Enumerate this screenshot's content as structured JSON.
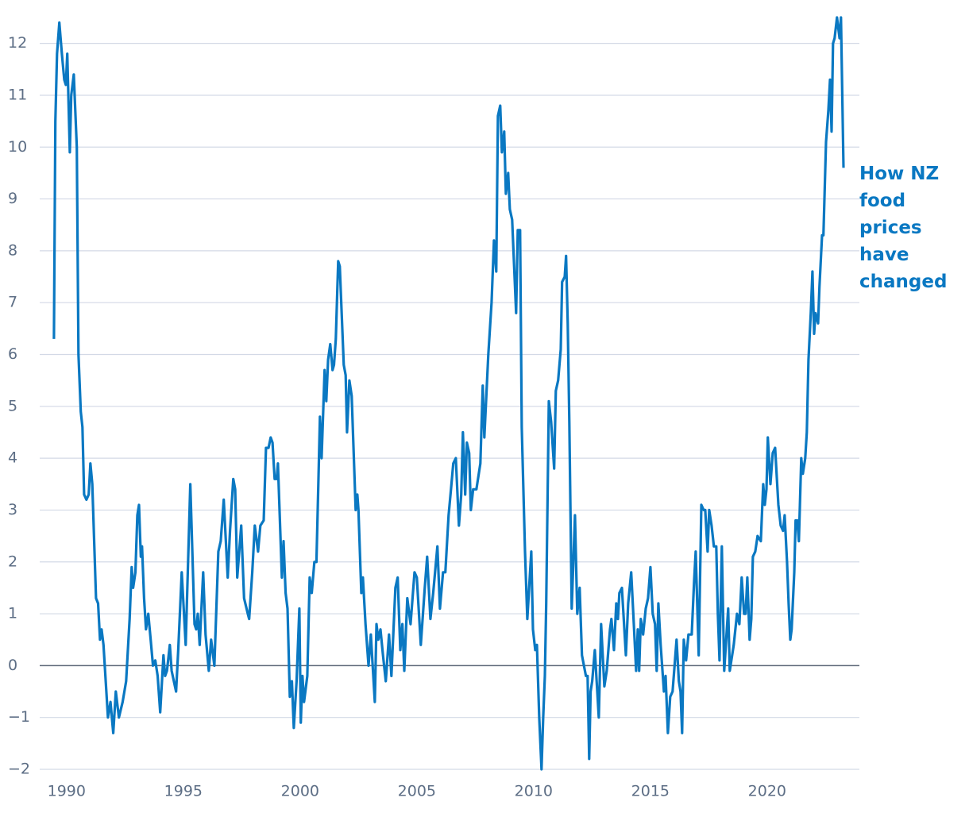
{
  "chart_data": {
    "type": "line",
    "annotation": "How NZ food prices have changed",
    "color": "#0a78c2",
    "xlim": [
      1988.85,
      2023.95
    ],
    "xticks": [
      1990,
      1995,
      2000,
      2005,
      2010,
      2015,
      2020
    ],
    "ylim": [
      -2,
      12.5
    ],
    "yticks": [
      {
        "value": -2,
        "label": "−2"
      },
      {
        "value": -1,
        "label": "−1"
      },
      0,
      1,
      2,
      3,
      4,
      5,
      6,
      7,
      8,
      9,
      10,
      11,
      12
    ],
    "grid": true,
    "x": [
      1989.46,
      1989.52,
      1989.59,
      1989.69,
      1989.8,
      1989.9,
      1989.97,
      1990.03,
      1990.14,
      1990.2,
      1990.31,
      1990.44,
      1990.51,
      1990.61,
      1990.68,
      1990.75,
      1990.85,
      1990.95,
      1991.02,
      1991.1,
      1991.26,
      1991.35,
      1991.43,
      1991.5,
      1991.58,
      1991.77,
      1991.88,
      1992.0,
      1992.11,
      1992.24,
      1992.4,
      1992.55,
      1992.7,
      1992.79,
      1992.85,
      1992.95,
      1993.03,
      1993.1,
      1993.18,
      1993.23,
      1993.32,
      1993.4,
      1993.5,
      1993.6,
      1993.7,
      1993.8,
      1993.9,
      1994.01,
      1994.15,
      1994.22,
      1994.3,
      1994.42,
      1994.5,
      1994.69,
      1994.78,
      1994.93,
      1995.1,
      1995.3,
      1995.48,
      1995.55,
      1995.62,
      1995.7,
      1995.85,
      1995.95,
      1996.09,
      1996.19,
      1996.33,
      1996.5,
      1996.6,
      1996.73,
      1996.9,
      1997.0,
      1997.14,
      1997.22,
      1997.31,
      1997.48,
      1997.6,
      1997.76,
      1997.82,
      1997.95,
      1998.06,
      1998.2,
      1998.3,
      1998.44,
      1998.54,
      1998.65,
      1998.74,
      1998.82,
      1998.91,
      1999.0,
      1999.05,
      1999.22,
      1999.29,
      1999.38,
      1999.46,
      1999.56,
      1999.65,
      1999.73,
      1999.85,
      1999.97,
      2000.03,
      2000.1,
      2000.17,
      2000.31,
      2000.41,
      2000.5,
      2000.61,
      2000.7,
      2000.78,
      2000.85,
      2000.92,
      2001.05,
      2001.12,
      2001.2,
      2001.29,
      2001.39,
      2001.45,
      2001.53,
      2001.63,
      2001.7,
      2001.87,
      2001.95,
      2002.01,
      2002.11,
      2002.21,
      2002.38,
      2002.45,
      2002.5,
      2002.62,
      2002.69,
      2002.8,
      2002.93,
      2003.03,
      2003.2,
      2003.27,
      2003.35,
      2003.44,
      2003.55,
      2003.67,
      2003.81,
      2003.91,
      2004.08,
      2004.18,
      2004.29,
      2004.38,
      2004.46,
      2004.59,
      2004.73,
      2004.9,
      2005.0,
      2005.17,
      2005.34,
      2005.44,
      2005.58,
      2005.7,
      2005.88,
      2005.99,
      2006.12,
      2006.22,
      2006.36,
      2006.46,
      2006.56,
      2006.67,
      2006.8,
      2006.9,
      2006.97,
      2007.07,
      2007.14,
      2007.24,
      2007.31,
      2007.41,
      2007.55,
      2007.72,
      2007.82,
      2007.89,
      2008.06,
      2008.2,
      2008.3,
      2008.4,
      2008.47,
      2008.57,
      2008.64,
      2008.74,
      2008.81,
      2008.91,
      2008.98,
      2009.08,
      2009.25,
      2009.32,
      2009.42,
      2009.49,
      2009.63,
      2009.73,
      2009.9,
      2009.97,
      2010.07,
      2010.14,
      2010.24,
      2010.34,
      2010.41,
      2010.48,
      2010.54,
      2010.65,
      2010.75,
      2010.88,
      2010.95,
      2011.05,
      2011.16,
      2011.22,
      2011.33,
      2011.39,
      2011.46,
      2011.53,
      2011.63,
      2011.77,
      2011.87,
      2011.97,
      2012.07,
      2012.24,
      2012.31,
      2012.38,
      2012.44,
      2012.51,
      2012.62,
      2012.79,
      2012.89,
      2013.03,
      2013.13,
      2013.27,
      2013.33,
      2013.44,
      2013.54,
      2013.61,
      2013.67,
      2013.78,
      2013.95,
      2014.05,
      2014.18,
      2014.29,
      2014.39,
      2014.46,
      2014.52,
      2014.59,
      2014.69,
      2014.8,
      2014.9,
      2015.0,
      2015.1,
      2015.2,
      2015.27,
      2015.34,
      2015.44,
      2015.58,
      2015.65,
      2015.75,
      2015.85,
      2015.95,
      2016.12,
      2016.22,
      2016.29,
      2016.36,
      2016.43,
      2016.53,
      2016.63,
      2016.77,
      2016.87,
      2016.94,
      2017.07,
      2017.18,
      2017.28,
      2017.35,
      2017.45,
      2017.52,
      2017.62,
      2017.72,
      2017.82,
      2017.89,
      2017.96,
      2018.06,
      2018.16,
      2018.26,
      2018.33,
      2018.4,
      2018.57,
      2018.71,
      2018.81,
      2018.91,
      2019.01,
      2019.08,
      2019.15,
      2019.25,
      2019.32,
      2019.39,
      2019.49,
      2019.59,
      2019.73,
      2019.83,
      2019.9,
      2019.97,
      2020.03,
      2020.14,
      2020.24,
      2020.34,
      2020.48,
      2020.58,
      2020.68,
      2020.75,
      2020.85,
      2020.92,
      2020.99,
      2021.05,
      2021.16,
      2021.22,
      2021.29,
      2021.36,
      2021.46,
      2021.53,
      2021.63,
      2021.7,
      2021.77,
      2021.87,
      2021.94,
      2022.01,
      2022.07,
      2022.18,
      2022.24,
      2022.35,
      2022.41,
      2022.52,
      2022.62,
      2022.69,
      2022.76,
      2022.82,
      2022.89,
      2022.99,
      2023.1,
      2023.16,
      2023.27
    ],
    "values": [
      6.3,
      10.5,
      11.8,
      12.4,
      11.8,
      11.3,
      11.2,
      11.8,
      9.9,
      11.0,
      11.4,
      10.0,
      6.0,
      4.9,
      4.6,
      3.3,
      3.2,
      3.3,
      3.9,
      3.5,
      1.3,
      1.2,
      0.5,
      0.7,
      0.4,
      -1.0,
      -0.7,
      -1.3,
      -0.5,
      -1.0,
      -0.7,
      -0.3,
      0.9,
      1.9,
      1.5,
      1.8,
      2.9,
      3.1,
      2.1,
      2.3,
      1.3,
      0.7,
      1.0,
      0.5,
      0.0,
      0.1,
      -0.2,
      -0.9,
      0.2,
      -0.2,
      -0.1,
      0.4,
      -0.1,
      -0.5,
      0.3,
      1.8,
      0.4,
      3.5,
      0.8,
      0.7,
      1.0,
      0.4,
      1.8,
      0.6,
      -0.1,
      0.5,
      0.0,
      2.2,
      2.4,
      3.2,
      1.7,
      2.6,
      3.6,
      3.4,
      1.7,
      2.7,
      1.3,
      1.0,
      0.9,
      1.8,
      2.7,
      2.2,
      2.7,
      2.8,
      4.2,
      4.2,
      4.4,
      4.3,
      3.6,
      3.6,
      3.9,
      1.7,
      2.4,
      1.4,
      1.1,
      -0.6,
      -0.3,
      -1.2,
      -0.3,
      1.1,
      -1.1,
      -0.2,
      -0.7,
      -0.2,
      1.7,
      1.4,
      2.0,
      2.0,
      3.5,
      4.8,
      4.0,
      5.7,
      5.1,
      5.9,
      6.2,
      5.7,
      5.8,
      6.3,
      7.8,
      7.7,
      5.8,
      5.6,
      4.5,
      5.5,
      5.2,
      3.0,
      3.3,
      3.0,
      1.4,
      1.7,
      0.8,
      0.0,
      0.6,
      -0.7,
      0.8,
      0.5,
      0.7,
      0.2,
      -0.3,
      0.6,
      -0.2,
      1.5,
      1.7,
      0.3,
      0.8,
      -0.1,
      1.3,
      0.8,
      1.8,
      1.7,
      0.4,
      1.5,
      2.1,
      0.9,
      1.4,
      2.3,
      1.1,
      1.8,
      1.8,
      2.9,
      3.4,
      3.9,
      4.0,
      2.7,
      3.3,
      4.5,
      3.3,
      4.3,
      4.1,
      3.0,
      3.4,
      3.4,
      3.9,
      5.4,
      4.4,
      6.0,
      7.0,
      8.2,
      7.6,
      10.6,
      10.8,
      9.9,
      10.3,
      9.1,
      9.5,
      8.8,
      8.6,
      6.8,
      8.4,
      8.4,
      4.6,
      2.2,
      0.9,
      2.2,
      0.7,
      0.3,
      0.4,
      -1.0,
      -2.0,
      -1.0,
      -0.2,
      1.2,
      5.1,
      4.7,
      3.8,
      5.3,
      5.5,
      6.1,
      7.4,
      7.5,
      7.9,
      6.6,
      4.7,
      1.1,
      2.9,
      1.0,
      1.5,
      0.2,
      -0.2,
      -0.2,
      -1.8,
      -0.5,
      -0.3,
      0.3,
      -1.0,
      0.8,
      -0.4,
      -0.1,
      0.7,
      0.9,
      0.3,
      1.2,
      0.9,
      1.4,
      1.5,
      0.2,
      1.2,
      1.8,
      0.8,
      -0.1,
      0.7,
      -0.1,
      0.9,
      0.6,
      1.1,
      1.3,
      1.9,
      1.0,
      0.8,
      -0.1,
      1.2,
      0.4,
      -0.5,
      -0.2,
      -1.3,
      -0.6,
      -0.5,
      0.5,
      -0.3,
      -0.5,
      -1.3,
      0.5,
      0.1,
      0.6,
      0.6,
      1.6,
      2.2,
      0.2,
      3.1,
      3.0,
      3.0,
      2.2,
      3.0,
      2.7,
      2.3,
      2.3,
      1.0,
      0.1,
      2.3,
      -0.1,
      0.6,
      1.1,
      -0.1,
      0.4,
      1.0,
      0.8,
      1.7,
      1.0,
      1.0,
      1.7,
      0.5,
      0.9,
      2.1,
      2.2,
      2.5,
      2.4,
      3.5,
      3.1,
      3.4,
      4.4,
      3.5,
      4.1,
      4.2,
      3.1,
      2.7,
      2.6,
      2.9,
      2.0,
      1.2,
      0.5,
      0.7,
      1.8,
      2.8,
      2.8,
      2.4,
      4.0,
      3.7,
      4.0,
      4.5,
      5.9,
      6.8,
      7.6,
      6.4,
      6.8,
      6.6,
      7.3,
      8.3,
      8.3,
      10.1,
      10.7,
      11.3,
      10.3,
      12.0,
      12.1,
      12.5,
      12.1,
      12.5,
      9.6
    ]
  }
}
